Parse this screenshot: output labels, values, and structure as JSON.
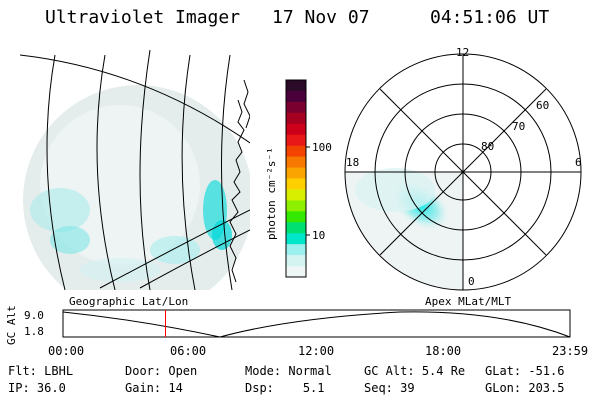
{
  "header": {
    "instrument": "Ultraviolet Imager",
    "date": "17 Nov 07",
    "time": "04:51:06 UT"
  },
  "colorbar": {
    "unit_label": "photon cm⁻²s⁻¹",
    "ticks": [
      "100",
      "10"
    ],
    "colors_top_to_bottom": [
      "#2b0a28",
      "#4a0038",
      "#7a0030",
      "#a50020",
      "#cc0018",
      "#e81818",
      "#f24400",
      "#f77800",
      "#f9a400",
      "#ffd000",
      "#d8f000",
      "#8cf000",
      "#34e800",
      "#00e070",
      "#00e6c8",
      "#9cf0ee",
      "#d4f4f2",
      "#eef6f6"
    ]
  },
  "left_panel": {
    "caption": "Geographic Lat/Lon"
  },
  "right_panel": {
    "caption": "Apex MLat/MLT",
    "mlt_labels": [
      "12",
      "18",
      "6",
      "0"
    ],
    "mlat_labels": [
      "60",
      "70",
      "80"
    ]
  },
  "alt_plot": {
    "axis_label": "GC Alt",
    "y_ticks": [
      "9.0",
      "1.8"
    ],
    "x_ticks": [
      "00:00",
      "06:00",
      "12:00",
      "18:00",
      "23:59"
    ],
    "current_time_marker_hours": 4.85,
    "marker_color": "#ff0000"
  },
  "status": {
    "row1": [
      {
        "key": "Flt:",
        "val": "LBHL"
      },
      {
        "key": "Door:",
        "val": "Open"
      },
      {
        "key": "Mode:",
        "val": "Normal"
      },
      {
        "key": "GC Alt:",
        "val": "5.4 Re"
      },
      {
        "key": "GLat:",
        "val": "-51.6"
      }
    ],
    "row2": [
      {
        "key": "IP:",
        "val": "36.0"
      },
      {
        "key": "Gain:",
        "val": "14"
      },
      {
        "key": "Dsp:",
        "val": "5.1"
      },
      {
        "key": "Seq:",
        "val": "39"
      },
      {
        "key": "GLon:",
        "val": "203.5"
      }
    ]
  }
}
